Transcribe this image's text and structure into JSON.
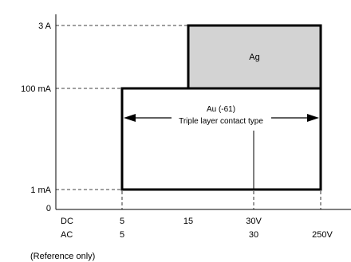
{
  "chart_data": {
    "type": "region",
    "y_ticks": [
      "3 A",
      "100 mA",
      "1 mA",
      "0"
    ],
    "x_rows": [
      {
        "label": "DC",
        "ticks": [
          "5",
          "15",
          "30V",
          ""
        ]
      },
      {
        "label": "AC",
        "ticks": [
          "5",
          "",
          "30",
          "250V"
        ]
      }
    ],
    "regions": [
      {
        "name": "Ag",
        "label_lines": [
          "Ag"
        ],
        "fill": "#d3d3d3",
        "current_range": [
          "100 mA",
          "3 A"
        ],
        "voltage_range": [
          "15",
          "250V"
        ]
      },
      {
        "name": "Au (-61)",
        "label_lines": [
          "Au (-61)",
          "Triple layer contact type"
        ],
        "fill": "#ffffff",
        "current_range": [
          "1 mA",
          "100 mA"
        ],
        "voltage_range": [
          "5",
          "250V"
        ]
      }
    ],
    "footnote": "(Reference only)"
  }
}
